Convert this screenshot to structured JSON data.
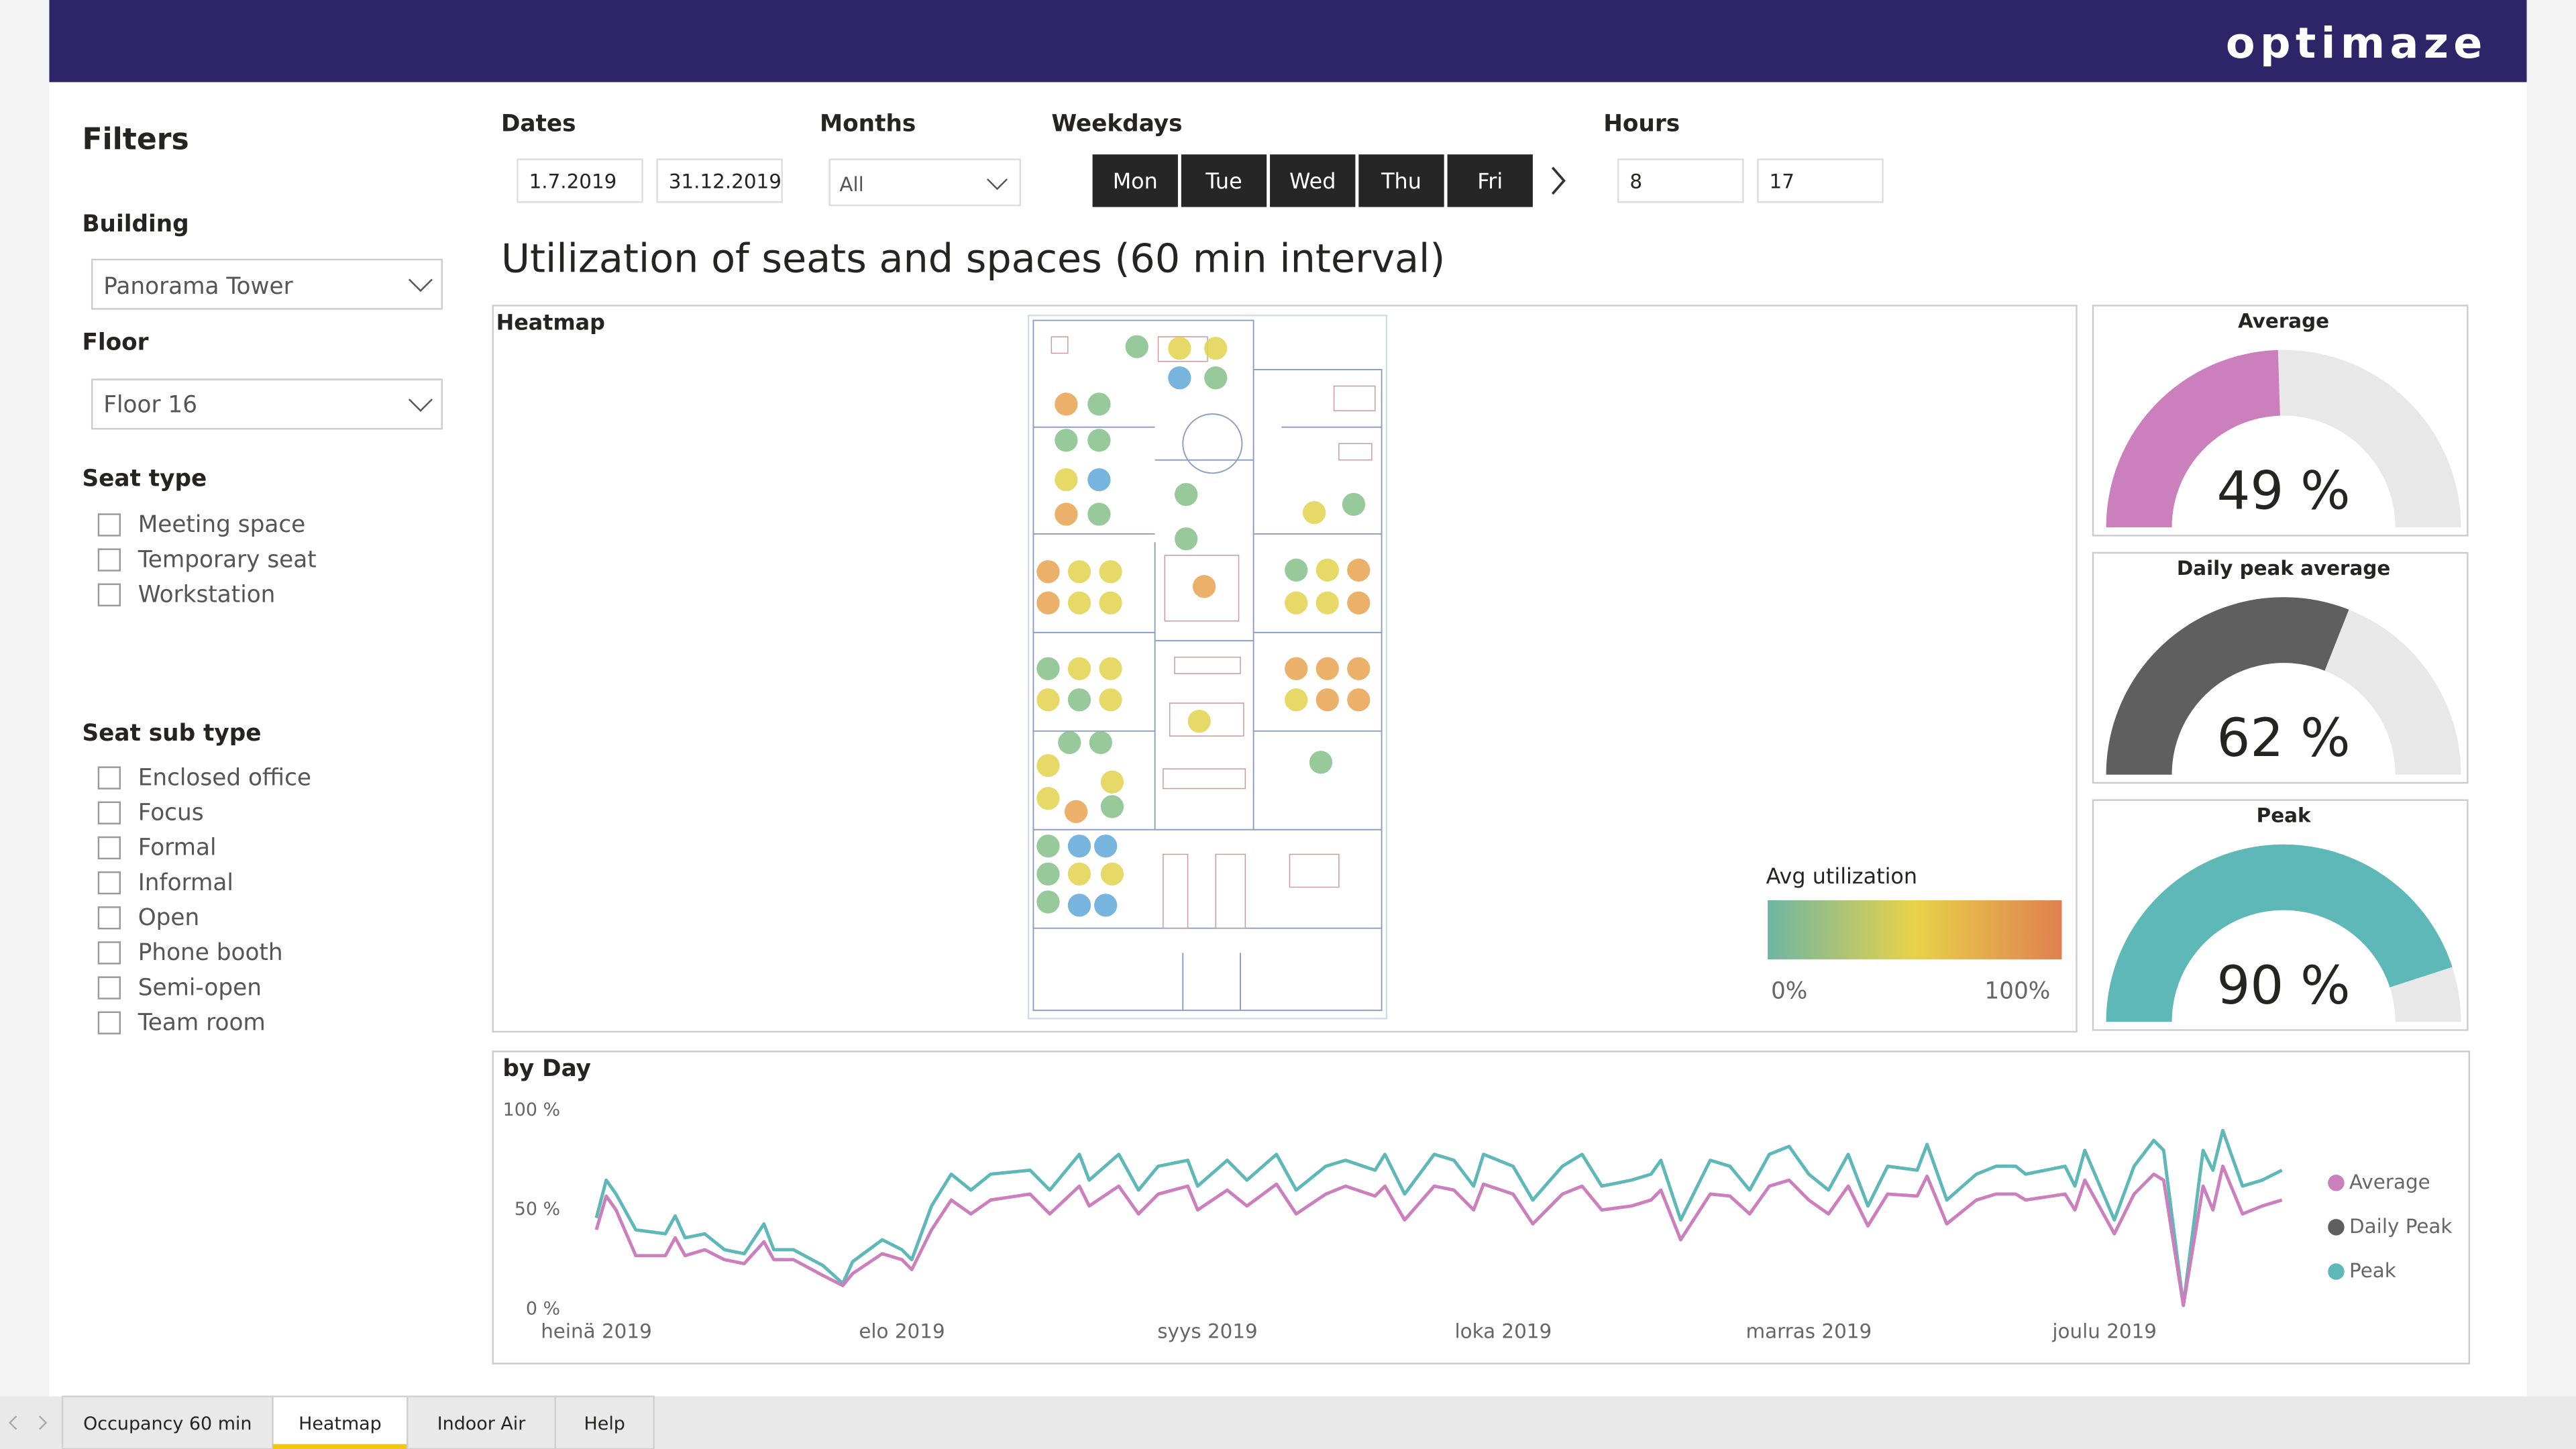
{
  "header": {
    "brand": "optimaze"
  },
  "filters": {
    "title": "Filters",
    "building": {
      "label": "Building",
      "value": "Panorama Tower"
    },
    "floor": {
      "label": "Floor",
      "value": "Floor 16"
    },
    "seat_type": {
      "label": "Seat type",
      "options": [
        "Meeting space",
        "Temporary seat",
        "Workstation"
      ]
    },
    "seat_sub_type": {
      "label": "Seat sub type",
      "options": [
        "Enclosed office",
        "Focus",
        "Formal",
        "Informal",
        "Open",
        "Phone booth",
        "Semi-open",
        "Team room"
      ]
    }
  },
  "controls": {
    "dates": {
      "label": "Dates",
      "from": "1.7.2019",
      "to": "31.12.2019"
    },
    "months": {
      "label": "Months",
      "value": "All"
    },
    "weekdays": {
      "label": "Weekdays",
      "days": [
        "Mon",
        "Tue",
        "Wed",
        "Thu",
        "Fri"
      ]
    },
    "hours": {
      "label": "Hours",
      "from": "8",
      "to": "17"
    }
  },
  "page_title": "Utilization of seats and spaces (60 min interval)",
  "heatmap": {
    "title": "Heatmap",
    "legend_title": "Avg utilization",
    "min_label": "0%",
    "max_label": "100%"
  },
  "gauges": [
    {
      "title": "Average",
      "value": 49,
      "value_label": "49 %",
      "color": "#cc7fbd",
      "range": [
        0,
        100
      ]
    },
    {
      "title": "Daily peak average",
      "value": 62,
      "value_label": "62 %",
      "color": "#5f5f5f",
      "range": [
        0,
        100
      ]
    },
    {
      "title": "Peak",
      "value": 90,
      "value_label": "90 %",
      "color": "#5eb8b8",
      "range": [
        0,
        100
      ]
    }
  ],
  "chart_data": {
    "type": "line",
    "title": "by Day",
    "x": [
      0,
      1,
      2,
      4,
      7,
      8,
      9,
      11,
      13,
      15,
      17,
      18,
      20,
      23,
      25,
      26,
      29,
      31,
      32,
      34,
      36,
      38,
      40,
      44,
      46,
      49,
      50,
      53,
      55,
      57,
      60,
      61,
      64,
      66,
      69,
      71,
      74,
      76,
      79,
      80,
      82,
      85,
      87,
      89,
      90,
      93,
      95,
      98,
      100,
      102,
      105,
      107,
      108,
      110,
      113,
      115,
      117,
      119,
      121,
      123,
      125,
      127,
      129,
      131,
      134,
      135,
      137,
      140,
      142,
      144,
      145,
      149,
      150,
      151,
      154,
      156,
      158,
      159,
      161,
      163,
      164,
      165,
      167,
      169,
      171
    ],
    "xlim": [
      0,
      172
    ],
    "xticks": [
      {
        "value": 0,
        "label": "heinä 2019"
      },
      {
        "value": 31,
        "label": "elo 2019"
      },
      {
        "value": 62,
        "label": "syys 2019"
      },
      {
        "value": 92,
        "label": "loka 2019"
      },
      {
        "value": 123,
        "label": "marras 2019"
      },
      {
        "value": 153,
        "label": "joulu 2019"
      }
    ],
    "ylim": [
      0,
      100
    ],
    "yticks": [
      {
        "value": 0,
        "label": "0 %"
      },
      {
        "value": 50,
        "label": "50 %"
      },
      {
        "value": 100,
        "label": "100 %"
      }
    ],
    "grid": false,
    "series": [
      {
        "name": "Average",
        "color": "#cc7fbd",
        "values": [
          40,
          57,
          50,
          27,
          27,
          36,
          27,
          30,
          25,
          23,
          34,
          25,
          25,
          17,
          12,
          18,
          28,
          25,
          20,
          40,
          55,
          48,
          55,
          58,
          48,
          62,
          52,
          62,
          48,
          58,
          62,
          50,
          60,
          52,
          63,
          48,
          58,
          62,
          57,
          62,
          45,
          62,
          60,
          50,
          63,
          58,
          43,
          58,
          62,
          50,
          52,
          55,
          60,
          35,
          58,
          57,
          48,
          62,
          65,
          55,
          48,
          62,
          42,
          58,
          57,
          67,
          43,
          55,
          58,
          58,
          55,
          58,
          50,
          65,
          38,
          58,
          68,
          65,
          2,
          62,
          50,
          72,
          48,
          52,
          55
        ]
      },
      {
        "name": "Daily Peak",
        "color": "#5f5f5f"
      },
      {
        "name": "Peak",
        "color": "#5eb8b8",
        "values": [
          46,
          65,
          58,
          40,
          38,
          47,
          36,
          38,
          30,
          28,
          43,
          30,
          30,
          22,
          13,
          24,
          35,
          30,
          25,
          52,
          68,
          60,
          68,
          70,
          60,
          78,
          65,
          78,
          60,
          72,
          75,
          62,
          75,
          65,
          78,
          60,
          72,
          75,
          70,
          78,
          58,
          78,
          75,
          62,
          78,
          72,
          55,
          72,
          78,
          62,
          65,
          68,
          75,
          45,
          75,
          72,
          60,
          78,
          82,
          68,
          60,
          78,
          52,
          72,
          70,
          83,
          55,
          68,
          72,
          72,
          68,
          72,
          62,
          80,
          45,
          72,
          85,
          80,
          2,
          80,
          70,
          90,
          62,
          65,
          70
        ]
      }
    ]
  },
  "tabs": {
    "items": [
      "Occupancy 60 min",
      "Heatmap",
      "Indoor Air",
      "Help"
    ],
    "active": 1
  }
}
